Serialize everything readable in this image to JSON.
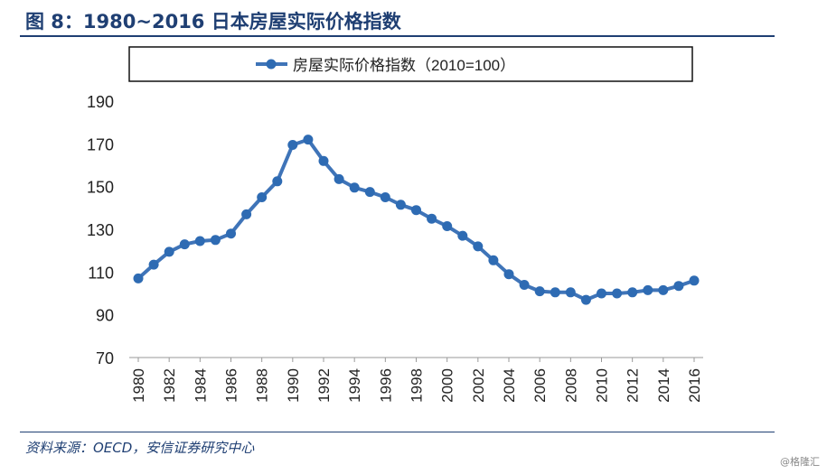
{
  "figure": {
    "title": "图 8：1980~2016 日本房屋实际价格指数",
    "source": "资料来源：OECD，安信证券研究中心",
    "watermark": "@格隆汇"
  },
  "colors": {
    "series": "#3f74b8",
    "marker": "#2e6bb3",
    "title": "#1f3f73",
    "axis_text": "#222222"
  },
  "chart_data": {
    "type": "line",
    "legend": {
      "position": "top",
      "entries": [
        "房屋实际价格指数（2010=100）"
      ]
    },
    "grid": false,
    "ylim": [
      70,
      190
    ],
    "yticks": [
      70,
      90,
      110,
      130,
      150,
      170,
      190
    ],
    "xticks": [
      "1980",
      "1982",
      "1984",
      "1986",
      "1988",
      "1990",
      "1992",
      "1994",
      "1996",
      "1998",
      "2000",
      "2002",
      "2004",
      "2006",
      "2008",
      "2010",
      "2012",
      "2014",
      "2016"
    ],
    "series": [
      {
        "name": "房屋实际价格指数（2010=100）",
        "x": [
          1980,
          1981,
          1982,
          1983,
          1984,
          1985,
          1986,
          1987,
          1988,
          1989,
          1990,
          1991,
          1992,
          1993,
          1994,
          1995,
          1996,
          1997,
          1998,
          1999,
          2000,
          2001,
          2002,
          2003,
          2004,
          2005,
          2006,
          2007,
          2008,
          2009,
          2010,
          2011,
          2012,
          2013,
          2014,
          2015,
          2016
        ],
        "values": [
          107,
          113.5,
          119.5,
          123,
          124.5,
          125,
          128,
          137,
          145,
          152.5,
          169.5,
          172,
          162,
          153.5,
          149.5,
          147.5,
          145,
          141.5,
          139,
          135,
          131.5,
          127,
          122,
          115.5,
          109,
          104,
          101,
          100.5,
          100.5,
          97,
          100,
          100,
          100.5,
          101.5,
          101.5,
          103.5,
          106
        ]
      }
    ]
  }
}
